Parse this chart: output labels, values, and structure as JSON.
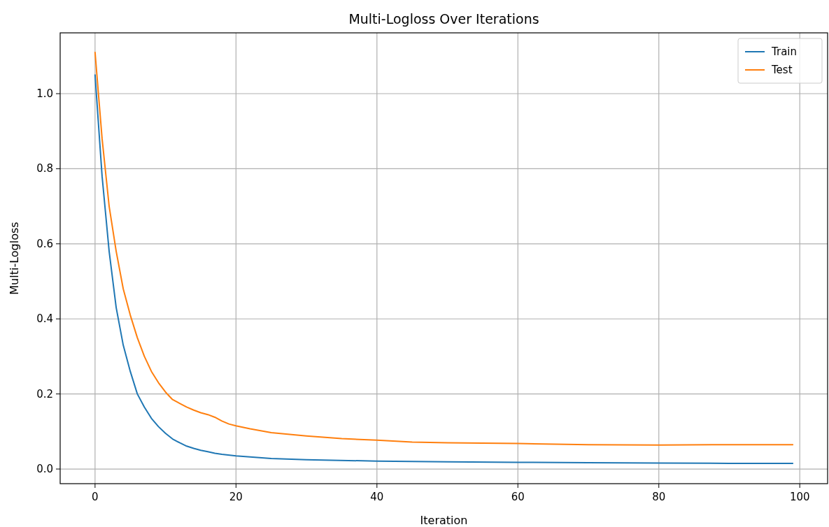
{
  "chart_data": {
    "type": "line",
    "title": "Multi-Logloss Over Iterations",
    "xlabel": "Iteration",
    "ylabel": "Multi-Logloss",
    "xlim": [
      -4.95,
      103.95
    ],
    "xticks": [
      0,
      20,
      40,
      60,
      80,
      100
    ],
    "ylim": [
      -0.039,
      1.162
    ],
    "yticks": [
      {
        "value": 0,
        "label": "0.0"
      },
      {
        "value": 0.2,
        "label": "0.2"
      },
      {
        "value": 0.4,
        "label": "0.4"
      },
      {
        "value": 0.6,
        "label": "0.6"
      },
      {
        "value": 0.8,
        "label": "0.8"
      },
      {
        "value": 1,
        "label": "1.0"
      }
    ],
    "grid": true,
    "legend": "top right",
    "line_style": "solid",
    "series": [
      {
        "name": "Train",
        "color": "#1f77b4",
        "x": [
          0,
          1,
          2,
          3,
          4,
          5,
          6,
          7,
          8,
          9,
          10,
          11,
          12,
          13,
          14,
          15,
          16,
          17,
          18,
          20,
          25,
          30,
          40,
          50,
          60,
          70,
          80,
          90,
          99
        ],
        "values": [
          1.05,
          0.78,
          0.58,
          0.43,
          0.33,
          0.26,
          0.2,
          0.165,
          0.135,
          0.113,
          0.095,
          0.08,
          0.07,
          0.061,
          0.055,
          0.05,
          0.046,
          0.042,
          0.039,
          0.035,
          0.028,
          0.025,
          0.021,
          0.019,
          0.018,
          0.017,
          0.016,
          0.015,
          0.015
        ]
      },
      {
        "name": "Test",
        "color": "#ff7f0e",
        "x": [
          0,
          1,
          2,
          3,
          4,
          5,
          6,
          7,
          8,
          9,
          10,
          11,
          12,
          13,
          14,
          15,
          16,
          17,
          18,
          19,
          20,
          22,
          25,
          30,
          35,
          40,
          45,
          50,
          60,
          70,
          80,
          90,
          99
        ],
        "values": [
          1.11,
          0.88,
          0.7,
          0.58,
          0.48,
          0.41,
          0.35,
          0.3,
          0.26,
          0.23,
          0.205,
          0.185,
          0.175,
          0.165,
          0.157,
          0.15,
          0.145,
          0.138,
          0.128,
          0.12,
          0.115,
          0.107,
          0.097,
          0.088,
          0.081,
          0.077,
          0.072,
          0.07,
          0.068,
          0.065,
          0.064,
          0.065,
          0.065
        ]
      }
    ]
  }
}
